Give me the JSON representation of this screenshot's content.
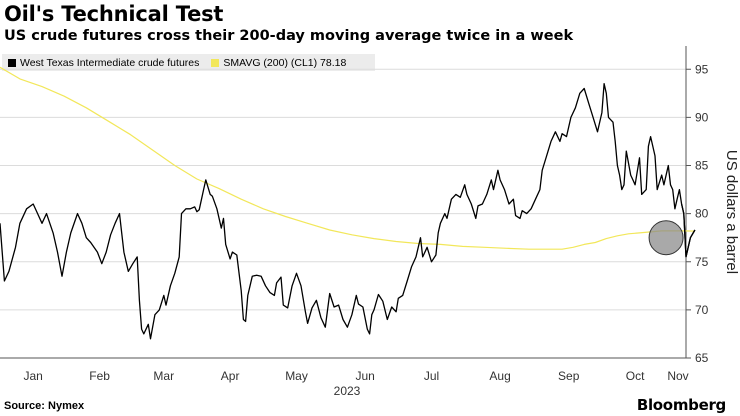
{
  "header": {
    "title": "Oil's Technical Test",
    "subtitle": "US crude futures cross their 200-day moving average twice in a week"
  },
  "footer": {
    "source": "Source: Nymex",
    "brand": "Bloomberg"
  },
  "chart_data": {
    "type": "line",
    "title": "Oil's Technical Test",
    "subtitle": "US crude futures cross their 200-day moving average twice in a week",
    "ylabel": "US dollars a barrel",
    "ylim": [
      65,
      97
    ],
    "yticks": [
      65,
      70,
      75,
      80,
      85,
      90,
      95
    ],
    "xlim": [
      1,
      311
    ],
    "x_unit": "day of 2023",
    "x_ticks": [
      {
        "label": "Jan",
        "x": 16
      },
      {
        "label": "Feb",
        "x": 46
      },
      {
        "label": "Mar",
        "x": 75
      },
      {
        "label": "Apr",
        "x": 105
      },
      {
        "label": "May",
        "x": 135
      },
      {
        "label": "Jun",
        "x": 166
      },
      {
        "label": "Jul",
        "x": 196
      },
      {
        "label": "Aug",
        "x": 227
      },
      {
        "label": "Sep",
        "x": 258
      },
      {
        "label": "Oct",
        "x": 288
      },
      {
        "label": "Nov",
        "x": 319
      }
    ],
    "x_year_label": "2023",
    "grid": "horizontal",
    "y_axis_side": "right",
    "legend": {
      "placement": "top-left",
      "entries": [
        {
          "label": "West Texas Intermediate crude futures",
          "color": "#000000"
        },
        {
          "label": "SMAVG (200) (CL1) 78.18",
          "color": "#f2e75a"
        }
      ]
    },
    "annotations": [
      {
        "type": "circle",
        "x": 302,
        "y": 77.5,
        "color": "#8c8c8c"
      }
    ],
    "series": [
      {
        "name": "West Texas Intermediate crude futures",
        "color": "#000000",
        "points": [
          [
            1,
            79
          ],
          [
            3,
            73
          ],
          [
            5,
            74
          ],
          [
            8,
            76.5
          ],
          [
            10,
            79
          ],
          [
            13,
            80.5
          ],
          [
            16,
            81
          ],
          [
            18,
            80
          ],
          [
            20,
            79
          ],
          [
            22,
            80
          ],
          [
            25,
            78
          ],
          [
            27,
            76
          ],
          [
            29,
            73.5
          ],
          [
            31,
            76
          ],
          [
            33,
            78
          ],
          [
            36,
            80
          ],
          [
            38,
            79
          ],
          [
            40,
            77.5
          ],
          [
            42,
            77
          ],
          [
            45,
            76
          ],
          [
            47,
            74.8
          ],
          [
            49,
            76
          ],
          [
            51,
            77.8
          ],
          [
            53,
            79
          ],
          [
            55,
            80
          ],
          [
            56,
            78
          ],
          [
            57,
            76
          ],
          [
            59,
            74
          ],
          [
            61,
            74.8
          ],
          [
            63,
            75.5
          ],
          [
            64,
            71
          ],
          [
            65,
            68
          ],
          [
            66,
            67.5
          ],
          [
            68,
            68.5
          ],
          [
            69,
            67
          ],
          [
            71,
            69.5
          ],
          [
            73,
            70
          ],
          [
            75,
            71.5
          ],
          [
            76,
            70.5
          ],
          [
            78,
            72.5
          ],
          [
            80,
            73.8
          ],
          [
            82,
            75.5
          ],
          [
            83,
            80
          ],
          [
            85,
            80.5
          ],
          [
            87,
            80.5
          ],
          [
            89,
            80.7
          ],
          [
            90,
            80.2
          ],
          [
            91,
            80.4
          ],
          [
            93,
            82.5
          ],
          [
            94,
            83.5
          ],
          [
            96,
            82
          ],
          [
            97,
            81.8
          ],
          [
            99,
            80.5
          ],
          [
            101,
            78.5
          ],
          [
            102,
            79.5
          ],
          [
            103,
            76.8
          ],
          [
            105,
            75.3
          ],
          [
            106,
            76
          ],
          [
            108,
            75.7
          ],
          [
            110,
            72
          ],
          [
            111,
            69
          ],
          [
            112,
            68.8
          ],
          [
            113,
            71.5
          ],
          [
            115,
            73.5
          ],
          [
            117,
            73.6
          ],
          [
            119,
            73.5
          ],
          [
            121,
            72.5
          ],
          [
            123,
            71.8
          ],
          [
            125,
            71.5
          ],
          [
            126,
            72.8
          ],
          [
            128,
            73.4
          ],
          [
            129,
            70.5
          ],
          [
            131,
            70.2
          ],
          [
            133,
            72.5
          ],
          [
            135,
            73.8
          ],
          [
            137,
            72.5
          ],
          [
            139,
            69.8
          ],
          [
            140,
            68.6
          ],
          [
            142,
            70.2
          ],
          [
            144,
            71
          ],
          [
            146,
            69.2
          ],
          [
            148,
            68.2
          ],
          [
            150,
            71.7
          ],
          [
            152,
            70.3
          ],
          [
            154,
            70.5
          ],
          [
            156,
            69
          ],
          [
            158,
            68.2
          ],
          [
            160,
            69.5
          ],
          [
            162,
            71.5
          ],
          [
            163,
            70.6
          ],
          [
            165,
            70.3
          ],
          [
            167,
            68
          ],
          [
            168,
            67.5
          ],
          [
            169,
            69.5
          ],
          [
            170,
            70
          ],
          [
            172,
            71.6
          ],
          [
            174,
            70.9
          ],
          [
            176,
            69
          ],
          [
            178,
            70.3
          ],
          [
            180,
            69.8
          ],
          [
            181,
            71.2
          ],
          [
            183,
            71.5
          ],
          [
            185,
            73
          ],
          [
            187,
            74.5
          ],
          [
            189,
            75.5
          ],
          [
            191,
            77.5
          ],
          [
            192,
            75.5
          ],
          [
            194,
            76.5
          ],
          [
            196,
            75
          ],
          [
            198,
            75.7
          ],
          [
            199,
            78
          ],
          [
            200,
            79
          ],
          [
            202,
            80
          ],
          [
            203,
            79.5
          ],
          [
            205,
            81.5
          ],
          [
            207,
            82
          ],
          [
            209,
            81.7
          ],
          [
            211,
            83
          ],
          [
            212,
            82
          ],
          [
            214,
            81
          ],
          [
            216,
            79.5
          ],
          [
            217,
            80.8
          ],
          [
            219,
            81
          ],
          [
            221,
            82
          ],
          [
            223,
            83.5
          ],
          [
            224,
            82.5
          ],
          [
            226,
            84.5
          ],
          [
            227,
            83.5
          ],
          [
            229,
            82.5
          ],
          [
            231,
            81
          ],
          [
            233,
            81.5
          ],
          [
            234,
            79.8
          ],
          [
            236,
            79.5
          ],
          [
            237,
            80.3
          ],
          [
            239,
            80
          ],
          [
            241,
            80.5
          ],
          [
            243,
            81.5
          ],
          [
            245,
            82.5
          ],
          [
            246,
            84.5
          ],
          [
            248,
            86
          ],
          [
            250,
            87.5
          ],
          [
            252,
            88.5
          ],
          [
            254,
            87.5
          ],
          [
            255,
            88.3
          ],
          [
            257,
            88
          ],
          [
            259,
            90
          ],
          [
            261,
            91
          ],
          [
            263,
            92.5
          ],
          [
            265,
            93
          ],
          [
            267,
            91.5
          ],
          [
            269,
            90
          ],
          [
            271,
            88.5
          ],
          [
            273,
            90.5
          ],
          [
            274,
            93.5
          ],
          [
            275,
            92.5
          ],
          [
            276,
            90
          ],
          [
            278,
            89.5
          ],
          [
            279,
            87.5
          ],
          [
            280,
            85
          ],
          [
            281,
            84
          ],
          [
            282,
            82.5
          ],
          [
            283,
            83
          ],
          [
            284,
            86.5
          ],
          [
            286,
            84
          ],
          [
            287,
            83.5
          ],
          [
            288,
            83
          ],
          [
            290,
            85.8
          ],
          [
            291,
            82
          ],
          [
            293,
            82.5
          ],
          [
            294,
            87
          ],
          [
            295,
            88
          ],
          [
            297,
            86
          ],
          [
            298,
            82.5
          ],
          [
            300,
            84
          ],
          [
            301,
            83
          ],
          [
            303,
            85
          ],
          [
            304,
            83
          ],
          [
            305,
            82.5
          ],
          [
            306,
            80.5
          ],
          [
            307,
            81.5
          ],
          [
            308,
            82.5
          ],
          [
            309,
            81
          ],
          [
            310,
            80
          ],
          [
            311,
            75.5
          ],
          [
            312,
            76.5
          ],
          [
            313,
            77.5
          ],
          [
            315,
            78.3
          ]
        ]
      },
      {
        "name": "SMAVG (200) (CL1) 78.18",
        "color": "#f2e75a",
        "points": [
          [
            1,
            95.2
          ],
          [
            10,
            94
          ],
          [
            20,
            93.2
          ],
          [
            30,
            92.2
          ],
          [
            40,
            91
          ],
          [
            50,
            89.6
          ],
          [
            60,
            88.2
          ],
          [
            70,
            86.6
          ],
          [
            80,
            85
          ],
          [
            90,
            83.6
          ],
          [
            100,
            82.6
          ],
          [
            110,
            81.5
          ],
          [
            120,
            80.5
          ],
          [
            130,
            79.7
          ],
          [
            140,
            79
          ],
          [
            150,
            78.3
          ],
          [
            160,
            77.8
          ],
          [
            170,
            77.4
          ],
          [
            180,
            77.1
          ],
          [
            190,
            76.9
          ],
          [
            200,
            76.8
          ],
          [
            210,
            76.6
          ],
          [
            220,
            76.5
          ],
          [
            230,
            76.4
          ],
          [
            240,
            76.3
          ],
          [
            250,
            76.3
          ],
          [
            255,
            76.3
          ],
          [
            260,
            76.5
          ],
          [
            265,
            76.8
          ],
          [
            270,
            77
          ],
          [
            275,
            77.4
          ],
          [
            280,
            77.7
          ],
          [
            285,
            77.9
          ],
          [
            290,
            78
          ],
          [
            295,
            78.1
          ],
          [
            300,
            78.2
          ],
          [
            305,
            78.2
          ],
          [
            310,
            78.2
          ],
          [
            315,
            78.18
          ]
        ]
      }
    ]
  }
}
